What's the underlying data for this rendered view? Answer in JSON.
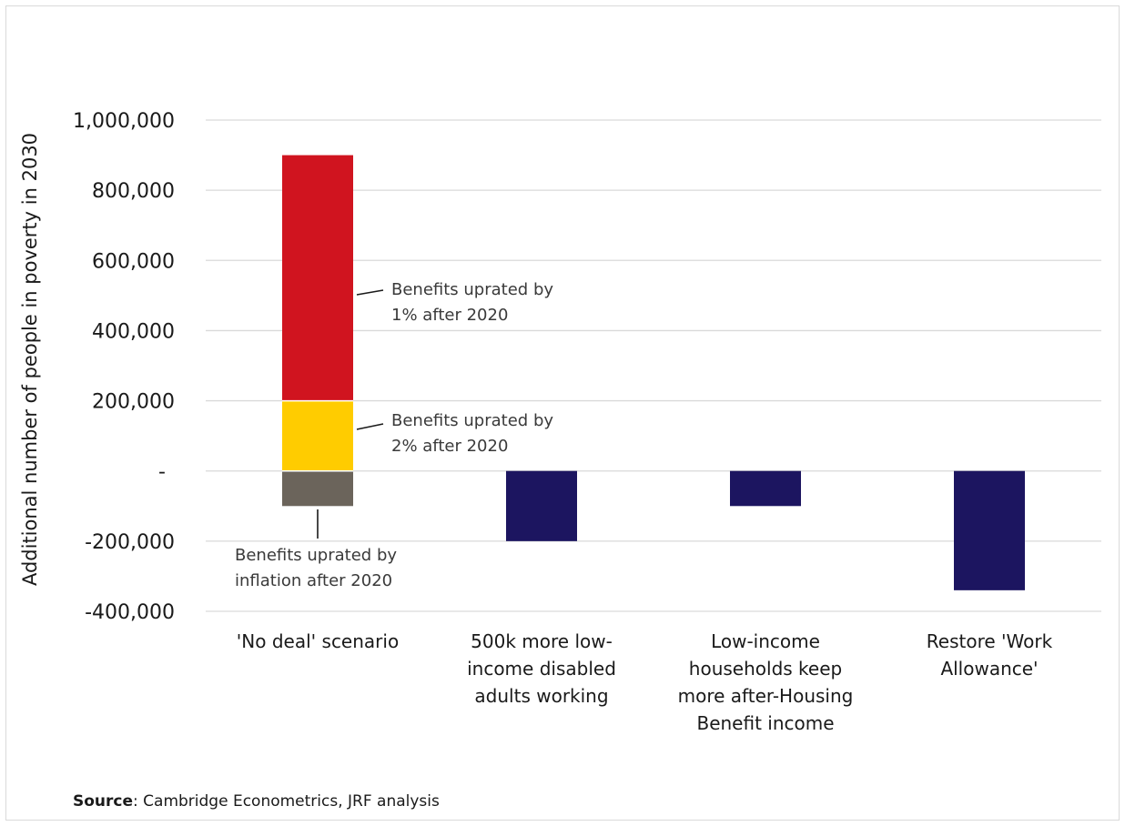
{
  "chart_data": {
    "type": "bar",
    "stacked": true,
    "ylabel": "Additional number of people in poverty in 2030",
    "ylim": [
      -400000,
      1000000
    ],
    "yticks": [
      {
        "value": 1000000,
        "label": "1,000,000"
      },
      {
        "value": 800000,
        "label": "800,000"
      },
      {
        "value": 600000,
        "label": "600,000"
      },
      {
        "value": 400000,
        "label": "400,000"
      },
      {
        "value": 200000,
        "label": "200,000"
      },
      {
        "value": 0,
        "label": "-"
      },
      {
        "value": -200000,
        "label": "-200,000"
      },
      {
        "value": -400000,
        "label": "-400,000"
      }
    ],
    "grid": true,
    "categories": [
      [
        "'No deal' scenario"
      ],
      [
        "500k more low-",
        "income disabled",
        "adults working"
      ],
      [
        "Low-income",
        "households keep",
        "more after-Housing",
        "Benefit income"
      ],
      [
        "Restore 'Work",
        "Allowance'"
      ]
    ],
    "series": [
      {
        "name": "Benefits uprated by inflation after 2020",
        "color": "#6b645b",
        "values": [
          -100000,
          null,
          null,
          null
        ]
      },
      {
        "name": "Benefits uprated by 2% after 2020",
        "color": "#ffcc00",
        "values": [
          200000,
          null,
          null,
          null
        ]
      },
      {
        "name": "Benefits uprated by 1% after 2020",
        "color": "#d0141f",
        "values": [
          700000,
          null,
          null,
          null
        ]
      },
      {
        "name": "",
        "color": "#1c1560",
        "values": [
          null,
          -200000,
          -100000,
          -340000
        ]
      }
    ],
    "annotations": [
      {
        "lines": [
          "Benefits uprated by",
          "1% after 2020"
        ],
        "target_series": 2
      },
      {
        "lines": [
          "Benefits uprated by",
          "2% after 2020"
        ],
        "target_series": 1
      },
      {
        "lines": [
          "Benefits uprated by",
          "inflation after 2020"
        ],
        "target_series": 0
      }
    ]
  },
  "source": {
    "label": "Source",
    "text": ": Cambridge Econometrics, JRF analysis"
  }
}
